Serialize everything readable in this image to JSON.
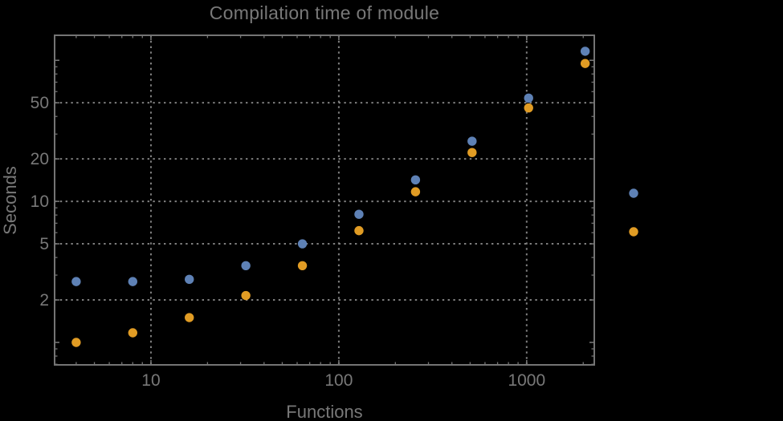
{
  "page": {
    "background": "#000000"
  },
  "chart_data": {
    "type": "scatter",
    "title": "Compilation time of module",
    "xlabel": "Functions",
    "ylabel": "Seconds",
    "xscale": "log",
    "yscale": "log",
    "xlim": [
      3.07,
      2290
    ],
    "ylim": [
      0.693,
      150.5
    ],
    "grid": "dotted",
    "x": [
      4,
      8,
      16,
      32,
      64,
      128,
      256,
      512,
      1024,
      2048
    ],
    "series": [
      {
        "name": "series-1-blue",
        "color": "#5e81b5",
        "marker": "circle",
        "values": [
          2.7,
          2.7,
          2.8,
          3.5,
          5.0,
          8.1,
          14.2,
          26.7,
          54,
          116
        ]
      },
      {
        "name": "series-2-orange",
        "color": "#e19c24",
        "marker": "circle",
        "values": [
          1.0,
          1.17,
          1.5,
          2.15,
          3.5,
          6.2,
          11.7,
          22.2,
          46,
          95
        ]
      }
    ],
    "x_ticks": [
      {
        "v": 10,
        "label": "10"
      },
      {
        "v": 100,
        "label": "100"
      },
      {
        "v": 1000,
        "label": "1000"
      }
    ],
    "x_minor_ticks": [
      4,
      5,
      6,
      7,
      8,
      9,
      20,
      30,
      40,
      50,
      60,
      70,
      80,
      90,
      200,
      300,
      400,
      500,
      600,
      700,
      800,
      900,
      2000
    ],
    "y_ticks": [
      {
        "v": 1,
        "label": ""
      },
      {
        "v": 2,
        "label": "2"
      },
      {
        "v": 5,
        "label": "5"
      },
      {
        "v": 10,
        "label": "10"
      },
      {
        "v": 20,
        "label": "20"
      },
      {
        "v": 50,
        "label": "50"
      },
      {
        "v": 100,
        "label": ""
      }
    ],
    "y_minor_ticks": [
      0.7,
      0.8,
      0.9,
      3,
      4,
      6,
      7,
      8,
      9,
      30,
      40,
      60,
      70,
      80,
      90
    ],
    "grid_x": [
      10,
      100,
      1000
    ],
    "grid_y": [
      2,
      5,
      10,
      20,
      50
    ],
    "legend": {
      "markers": [
        {
          "series": "series-1-blue",
          "color": "#5e81b5",
          "label": ""
        },
        {
          "series": "series-2-orange",
          "color": "#e19c24",
          "label": ""
        }
      ]
    },
    "colors": {
      "frame": "#747474",
      "grid": "#7f7f7f",
      "text": "#787878",
      "background": "#000000"
    }
  }
}
